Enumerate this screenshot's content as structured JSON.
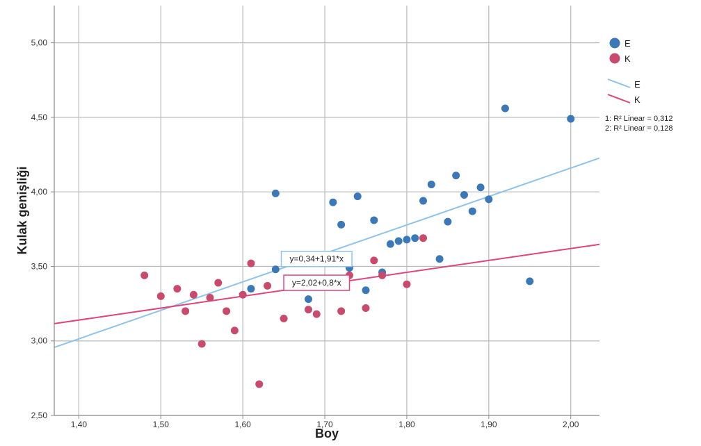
{
  "chart_data": {
    "type": "scatter",
    "xlabel": "Boy",
    "ylabel": "Kulak genişliği",
    "xlim": [
      1.37,
      2.035
    ],
    "ylim": [
      2.5,
      5.25
    ],
    "x_ticks": [
      "1,40",
      "1,50",
      "1,60",
      "1,70",
      "1,80",
      "1,90",
      "2,00"
    ],
    "x_tick_values": [
      1.4,
      1.5,
      1.6,
      1.7,
      1.8,
      1.9,
      2.0
    ],
    "y_ticks": [
      "2,50",
      "3,00",
      "3,50",
      "4,00",
      "4,50",
      "5,00"
    ],
    "y_tick_values": [
      2.5,
      3.0,
      3.5,
      4.0,
      4.5,
      5.0
    ],
    "grid": true,
    "legend_position": "right",
    "series": [
      {
        "name": "E",
        "color": "#3a78b8",
        "points": [
          [
            1.64,
            3.48
          ],
          [
            1.61,
            3.35
          ],
          [
            1.64,
            3.99
          ],
          [
            1.68,
            3.28
          ],
          [
            1.71,
            3.93
          ],
          [
            1.72,
            3.78
          ],
          [
            1.73,
            3.49
          ],
          [
            1.74,
            3.97
          ],
          [
            1.75,
            3.34
          ],
          [
            1.76,
            3.81
          ],
          [
            1.77,
            3.46
          ],
          [
            1.78,
            3.65
          ],
          [
            1.79,
            3.67
          ],
          [
            1.8,
            3.68
          ],
          [
            1.81,
            3.69
          ],
          [
            1.82,
            3.94
          ],
          [
            1.83,
            4.05
          ],
          [
            1.84,
            3.55
          ],
          [
            1.85,
            3.8
          ],
          [
            1.86,
            4.11
          ],
          [
            1.87,
            3.98
          ],
          [
            1.88,
            3.87
          ],
          [
            1.89,
            4.03
          ],
          [
            1.9,
            3.95
          ],
          [
            1.92,
            4.56
          ],
          [
            1.95,
            3.4
          ],
          [
            2.0,
            4.49
          ]
        ],
        "fit": {
          "label": "E",
          "line_color": "#8ec3ea",
          "intercept": 0.34,
          "slope": 1.91,
          "equation": "y=0,34+1,91*x",
          "r2_label": "1: R² Linear = 0,312",
          "eq_pos": [
            1.69,
            3.55
          ]
        }
      },
      {
        "name": "K",
        "color": "#c84a6c",
        "points": [
          [
            1.48,
            3.44
          ],
          [
            1.5,
            3.3
          ],
          [
            1.52,
            3.35
          ],
          [
            1.53,
            3.2
          ],
          [
            1.54,
            3.31
          ],
          [
            1.55,
            2.98
          ],
          [
            1.56,
            3.29
          ],
          [
            1.57,
            3.39
          ],
          [
            1.58,
            3.2
          ],
          [
            1.59,
            3.07
          ],
          [
            1.6,
            3.31
          ],
          [
            1.61,
            3.52
          ],
          [
            1.62,
            2.71
          ],
          [
            1.63,
            3.37
          ],
          [
            1.65,
            3.15
          ],
          [
            1.68,
            3.21
          ],
          [
            1.69,
            3.18
          ],
          [
            1.72,
            3.2
          ],
          [
            1.73,
            3.44
          ],
          [
            1.75,
            3.22
          ],
          [
            1.76,
            3.54
          ],
          [
            1.77,
            3.44
          ],
          [
            1.8,
            3.38
          ],
          [
            1.82,
            3.69
          ]
        ],
        "fit": {
          "label": "K",
          "line_color": "#e0457a",
          "intercept": 2.02,
          "slope": 0.8,
          "equation": "y=2,02+0,8*x",
          "r2_label": "2: R² Linear = 0,128",
          "eq_pos": [
            1.69,
            3.39
          ]
        }
      }
    ]
  }
}
